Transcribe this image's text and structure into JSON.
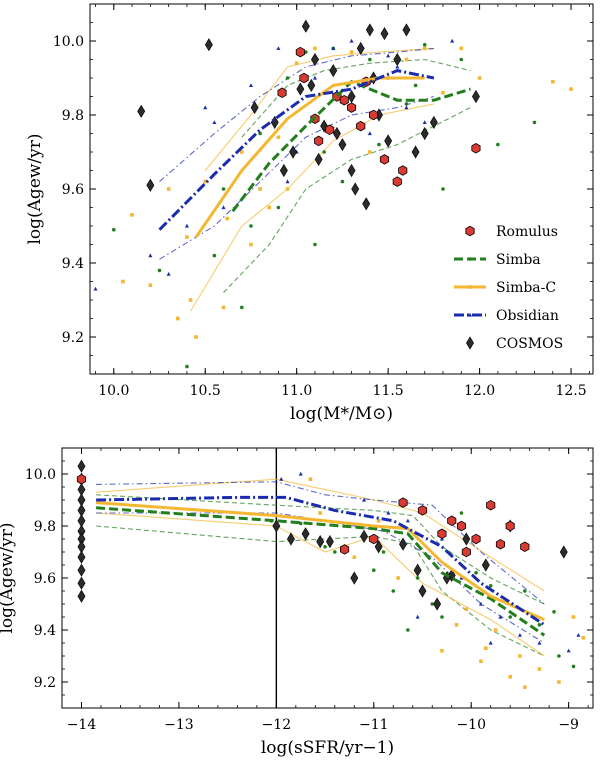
{
  "chart_data": [
    {
      "type": "scatter",
      "title": "",
      "xlabel": "log(M*/M⊙)",
      "ylabel": "log(Agew/yr)",
      "xlim": [
        9.87,
        12.62
      ],
      "ylim": [
        9.1,
        10.1
      ],
      "xticks": [
        "10.0",
        "10.5",
        "11.0",
        "11.5",
        "12.0",
        "12.5"
      ],
      "xtick_values": [
        10.0,
        10.5,
        11.0,
        11.5,
        12.0,
        12.5
      ],
      "yticks": [
        "9.2",
        "9.4",
        "9.6",
        "9.8",
        "10.0"
      ],
      "ytick_values": [
        9.2,
        9.4,
        9.6,
        9.8,
        10.0
      ],
      "legend": {
        "position": "lower-right",
        "entries": [
          {
            "label": "Romulus",
            "key": "romulus"
          },
          {
            "label": "Simba",
            "key": "simba"
          },
          {
            "label": "Simba-C",
            "key": "simbac"
          },
          {
            "label": "Obsidian",
            "key": "obsidian"
          },
          {
            "label": "COSMOS",
            "key": "cosmos"
          }
        ]
      },
      "series": [
        {
          "name": "Romulus",
          "kind": "points",
          "x": [
            10.92,
            11.02,
            11.1,
            11.12,
            11.22,
            11.3,
            11.35,
            11.38,
            11.42,
            11.48,
            11.55,
            11.58,
            11.98,
            11.04,
            11.18,
            11.26
          ],
          "y": [
            9.86,
            9.97,
            9.79,
            9.73,
            9.85,
            9.82,
            9.77,
            9.89,
            9.8,
            9.68,
            9.62,
            9.65,
            9.71,
            9.9,
            9.76,
            9.84
          ]
        },
        {
          "name": "Simba",
          "kind": "points",
          "x": [
            10.0,
            10.25,
            10.4,
            10.6,
            10.7,
            10.8,
            10.9,
            10.95,
            11.05,
            11.1,
            11.15,
            11.2,
            11.3,
            11.4,
            11.5,
            11.6,
            11.7,
            11.8,
            11.9,
            12.1,
            12.3,
            10.35,
            10.55,
            10.75,
            11.25,
            11.45,
            11.65
          ],
          "y": [
            9.49,
            9.38,
            9.12,
            9.6,
            9.28,
            9.75,
            9.55,
            9.9,
            9.97,
            9.45,
            9.7,
            9.98,
            9.85,
            9.95,
            9.9,
            9.83,
            9.99,
            9.6,
            9.95,
            9.72,
            9.78,
            9.25,
            9.42,
            9.5,
            9.62,
            9.72,
            9.88
          ]
        },
        {
          "name": "Simba-C",
          "kind": "points",
          "x": [
            10.05,
            10.1,
            10.2,
            10.3,
            10.35,
            10.4,
            10.45,
            10.5,
            10.6,
            10.7,
            10.75,
            10.8,
            10.85,
            10.9,
            10.95,
            11.0,
            11.1,
            11.2,
            11.3,
            11.4,
            11.5,
            11.6,
            11.7,
            11.8,
            11.9,
            12.0,
            12.4,
            12.5,
            10.42,
            10.62
          ],
          "y": [
            9.35,
            9.53,
            9.34,
            9.6,
            9.25,
            9.47,
            9.2,
            9.62,
            9.28,
            9.7,
            9.45,
            9.6,
            9.55,
            9.74,
            9.6,
            9.94,
            9.98,
            9.92,
            9.97,
            9.7,
            9.9,
            9.95,
            9.98,
            9.86,
            9.98,
            9.9,
            9.89,
            9.87,
            9.3,
            9.52
          ]
        },
        {
          "name": "Obsidian",
          "kind": "points",
          "x": [
            9.9,
            10.2,
            10.3,
            10.5,
            10.55,
            10.6,
            10.75,
            10.9,
            11.0,
            11.2,
            11.3,
            11.5,
            11.6,
            11.7,
            11.85,
            10.4,
            10.95,
            11.1,
            11.4,
            11.55
          ],
          "y": [
            9.33,
            9.42,
            9.37,
            9.82,
            9.78,
            9.55,
            9.88,
            9.98,
            9.7,
            9.98,
            10.0,
            9.96,
            9.82,
            9.78,
            10.0,
            9.5,
            9.62,
            9.9,
            9.75,
            9.93
          ]
        },
        {
          "name": "COSMOS",
          "kind": "points",
          "x": [
            10.15,
            10.2,
            10.52,
            10.77,
            10.88,
            10.93,
            10.98,
            11.02,
            11.05,
            11.1,
            11.12,
            11.15,
            11.2,
            11.22,
            11.25,
            11.3,
            11.32,
            11.35,
            11.4,
            11.42,
            11.45,
            11.5,
            11.55,
            11.6,
            11.65,
            11.7,
            11.75,
            11.98,
            11.38,
            11.3,
            11.48,
            11.08
          ],
          "y": [
            9.81,
            9.61,
            9.99,
            9.82,
            9.78,
            9.65,
            9.7,
            9.87,
            10.04,
            9.95,
            9.68,
            9.77,
            9.92,
            9.75,
            9.72,
            9.85,
            9.6,
            9.98,
            10.03,
            9.9,
            9.8,
            9.73,
            9.95,
            10.03,
            9.7,
            9.75,
            9.78,
            9.85,
            9.56,
            9.65,
            10.02,
            9.88
          ]
        },
        {
          "name": "Simba",
          "kind": "median",
          "x": [
            10.65,
            10.85,
            11.05,
            11.3,
            11.55,
            11.75,
            11.95
          ],
          "y": [
            9.54,
            9.67,
            9.77,
            9.89,
            9.84,
            9.84,
            9.87
          ]
        },
        {
          "name": "Simba",
          "kind": "band",
          "x": [
            10.6,
            10.85,
            11.05,
            11.3,
            11.55,
            11.95
          ],
          "y": [
            9.32,
            9.45,
            9.6,
            9.68,
            9.72,
            9.82
          ]
        },
        {
          "name": "Simba",
          "kind": "band",
          "x": [
            10.7,
            10.95,
            11.15,
            11.4,
            11.7,
            11.95
          ],
          "y": [
            9.74,
            9.88,
            9.92,
            9.94,
            9.95,
            9.92
          ]
        },
        {
          "name": "Simba-C",
          "kind": "median",
          "x": [
            10.45,
            10.7,
            10.95,
            11.2,
            11.45,
            11.7
          ],
          "y": [
            9.47,
            9.65,
            9.79,
            9.88,
            9.9,
            9.9
          ]
        },
        {
          "name": "Simba-C",
          "kind": "band",
          "x": [
            10.42,
            10.7,
            10.95,
            11.2,
            11.45,
            11.75
          ],
          "y": [
            9.27,
            9.5,
            9.6,
            9.73,
            9.8,
            9.83
          ]
        },
        {
          "name": "Simba-C",
          "kind": "band",
          "x": [
            10.5,
            10.75,
            10.95,
            11.2,
            11.45,
            11.75
          ],
          "y": [
            9.65,
            9.8,
            9.93,
            9.96,
            9.97,
            9.98
          ]
        },
        {
          "name": "Obsidian",
          "kind": "median",
          "x": [
            10.25,
            10.55,
            10.8,
            11.05,
            11.3,
            11.55,
            11.75
          ],
          "y": [
            9.49,
            9.64,
            9.76,
            9.85,
            9.87,
            9.92,
            9.9
          ]
        },
        {
          "name": "Obsidian",
          "kind": "band",
          "x": [
            10.25,
            10.55,
            10.8,
            11.05,
            11.3,
            11.55,
            11.75
          ],
          "y": [
            9.41,
            9.5,
            9.62,
            9.74,
            9.8,
            9.82,
            9.85
          ]
        },
        {
          "name": "Obsidian",
          "kind": "band",
          "x": [
            10.25,
            10.55,
            10.8,
            11.05,
            11.3,
            11.55,
            11.75
          ],
          "y": [
            9.62,
            9.75,
            9.85,
            9.93,
            9.96,
            9.97,
            9.98
          ]
        }
      ]
    },
    {
      "type": "scatter",
      "title": "",
      "xlabel": "log(sSFR/yr−1)",
      "ylabel": "log(Agew/yr)",
      "xlim": [
        -14.2,
        -8.75
      ],
      "ylim": [
        9.1,
        10.1
      ],
      "xticks": [
        "−14",
        "−13",
        "−12",
        "−11",
        "−10",
        "−9"
      ],
      "xtick_values": [
        -14,
        -13,
        -12,
        -11,
        -10,
        -9
      ],
      "yticks": [
        "9.2",
        "9.4",
        "9.6",
        "9.8",
        "10.0"
      ],
      "ytick_values": [
        9.2,
        9.4,
        9.6,
        9.8,
        10.0
      ],
      "vline": -12.0,
      "series": [
        {
          "name": "Romulus",
          "kind": "points",
          "x": [
            -14.0,
            -11.3,
            -10.7,
            -10.5,
            -10.3,
            -10.2,
            -10.1,
            -9.95,
            -9.8,
            -9.7,
            -9.6,
            -9.45,
            -10.05,
            -11.0
          ],
          "y": [
            9.98,
            9.71,
            9.89,
            9.86,
            9.77,
            9.82,
            9.8,
            9.75,
            9.88,
            9.73,
            9.8,
            9.72,
            9.7,
            9.75
          ]
        },
        {
          "name": "Simba",
          "kind": "points",
          "x": [
            -12.05,
            -11.75,
            -11.5,
            -11.0,
            -10.8,
            -10.55,
            -10.4,
            -10.3,
            -10.1,
            -9.95,
            -9.8,
            -9.6,
            -9.45,
            -9.3,
            -9.1,
            -8.95,
            -10.9,
            -10.65,
            -9.15,
            -11.4
          ],
          "y": [
            9.82,
            9.81,
            9.72,
            9.63,
            9.55,
            9.6,
            9.5,
            9.45,
            9.85,
            9.62,
            9.57,
            9.45,
            9.55,
            9.42,
            9.3,
            9.26,
            9.7,
            9.4,
            9.47,
            9.7
          ]
        },
        {
          "name": "Simba-C",
          "kind": "points",
          "x": [
            -11.65,
            -11.2,
            -10.95,
            -10.75,
            -10.5,
            -10.3,
            -10.2,
            -10.05,
            -9.9,
            -9.75,
            -9.6,
            -9.5,
            -9.3,
            -9.1,
            -8.95,
            -8.85,
            -10.15,
            -9.85,
            -9.45,
            -11.55
          ],
          "y": [
            9.98,
            9.68,
            9.82,
            9.6,
            9.55,
            9.32,
            9.6,
            9.48,
            9.28,
            9.4,
            9.22,
            9.3,
            9.25,
            9.2,
            9.45,
            9.37,
            9.42,
            9.33,
            9.18,
            9.85
          ]
        },
        {
          "name": "Obsidian",
          "kind": "points",
          "x": [
            -11.95,
            -11.75,
            -11.1,
            -10.85,
            -10.65,
            -10.3,
            -10.1,
            -9.9,
            -9.7,
            -9.5,
            -9.3,
            -9.0,
            -8.9,
            -10.55,
            -9.8
          ],
          "y": [
            9.98,
            10.0,
            9.9,
            9.85,
            9.82,
            9.75,
            9.6,
            9.5,
            9.45,
            9.38,
            9.35,
            9.32,
            9.38,
            9.45,
            9.35
          ]
        },
        {
          "name": "COSMOS",
          "kind": "points",
          "x": [
            -14.0,
            -14.0,
            -14.0,
            -14.0,
            -14.0,
            -14.0,
            -14.0,
            -14.0,
            -14.0,
            -14.0,
            -14.0,
            -14.0,
            -14.0,
            -12.0,
            -11.85,
            -11.7,
            -11.55,
            -11.45,
            -11.2,
            -11.1,
            -10.95,
            -10.7,
            -10.55,
            -10.35,
            -10.2,
            -10.05,
            -9.85,
            -9.6,
            -9.05,
            -10.25,
            -10.5
          ],
          "y": [
            10.03,
            9.98,
            9.94,
            9.9,
            9.86,
            9.82,
            9.78,
            9.75,
            9.72,
            9.68,
            9.63,
            9.58,
            9.53,
            9.8,
            9.75,
            9.77,
            9.74,
            9.74,
            9.6,
            9.76,
            9.72,
            9.73,
            9.63,
            9.5,
            9.61,
            9.75,
            9.65,
            9.8,
            9.7,
            9.6,
            9.55
          ]
        },
        {
          "name": "Simba",
          "kind": "median",
          "x": [
            -13.85,
            -12.0,
            -11.0,
            -10.65,
            -10.3,
            -9.8,
            -9.25
          ],
          "y": [
            9.87,
            9.82,
            9.79,
            9.77,
            9.62,
            9.52,
            9.38
          ]
        },
        {
          "name": "Simba",
          "kind": "band",
          "x": [
            -13.85,
            -12.0,
            -11.0,
            -10.6,
            -10.3,
            -9.8,
            -9.25
          ],
          "y": [
            9.8,
            9.74,
            9.76,
            9.73,
            9.55,
            9.4,
            9.3
          ]
        },
        {
          "name": "Simba",
          "kind": "band",
          "x": [
            -13.85,
            -12.0,
            -11.0,
            -10.6,
            -10.3,
            -9.8,
            -9.25
          ],
          "y": [
            9.92,
            9.88,
            9.86,
            9.84,
            9.72,
            9.6,
            9.5
          ]
        },
        {
          "name": "Simba-C",
          "kind": "median",
          "x": [
            -13.85,
            -12.0,
            -11.0,
            -10.65,
            -10.3,
            -9.8,
            -9.25
          ],
          "y": [
            9.89,
            9.84,
            9.8,
            9.79,
            9.66,
            9.53,
            9.44
          ]
        },
        {
          "name": "Simba-C",
          "kind": "band",
          "x": [
            -13.85,
            -12.0,
            -11.5,
            -11.0,
            -10.5,
            -9.8,
            -9.25
          ],
          "y": [
            9.85,
            9.8,
            9.7,
            9.76,
            9.58,
            9.44,
            9.3
          ]
        },
        {
          "name": "Simba-C",
          "kind": "band",
          "x": [
            -13.85,
            -12.0,
            -11.5,
            -11.0,
            -10.5,
            -9.8,
            -9.25
          ],
          "y": [
            9.93,
            9.98,
            9.94,
            9.9,
            9.85,
            9.68,
            9.55
          ]
        },
        {
          "name": "Obsidian",
          "kind": "median",
          "x": [
            -13.85,
            -12.4,
            -11.9,
            -11.4,
            -10.8,
            -10.3,
            -9.9,
            -9.25
          ],
          "y": [
            9.9,
            9.91,
            9.91,
            9.86,
            9.82,
            9.72,
            9.58,
            9.42
          ]
        },
        {
          "name": "Obsidian",
          "kind": "band",
          "x": [
            -13.85,
            -12.0,
            -11.5,
            -10.9,
            -10.4,
            -9.9,
            -9.25
          ],
          "y": [
            9.85,
            9.85,
            9.82,
            9.78,
            9.68,
            9.5,
            9.35
          ]
        },
        {
          "name": "Obsidian",
          "kind": "band",
          "x": [
            -13.85,
            -12.0,
            -11.5,
            -11.0,
            -10.4,
            -9.9,
            -9.25
          ],
          "y": [
            9.96,
            9.97,
            9.92,
            9.9,
            9.88,
            9.7,
            9.5
          ]
        }
      ]
    }
  ],
  "colors": {
    "romulus": "#d93b32",
    "simba": "#237e1c",
    "simbac": "#f5b731",
    "obsidian": "#1a2bb0",
    "cosmos": "#2b2b2b"
  }
}
